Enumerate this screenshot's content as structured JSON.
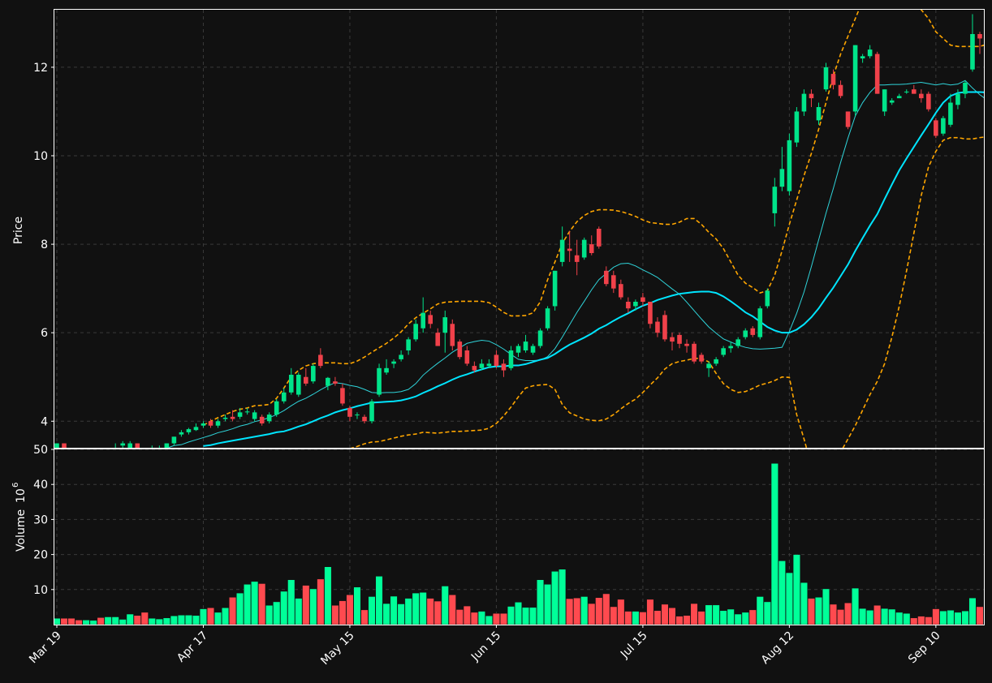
{
  "chart_data": {
    "type": "candlestick",
    "price_panel": {
      "ylabel": "Price",
      "ylim": [
        3.4,
        13.3
      ],
      "yticks": [
        4,
        6,
        8,
        10,
        12
      ],
      "grid": true
    },
    "volume_panel": {
      "ylabel": "Volume",
      "ylabel_exponent": "6",
      "ylim": [
        0,
        50
      ],
      "yticks": [
        10,
        20,
        30,
        40,
        50
      ],
      "grid": true
    },
    "x_ticks": [
      {
        "label": "Mar 19",
        "index": 0
      },
      {
        "label": "Apr 17",
        "index": 20
      },
      {
        "label": "May 15",
        "index": 40
      },
      {
        "label": "Jun 15",
        "index": 60
      },
      {
        "label": "Jul 15",
        "index": 80
      },
      {
        "label": "Aug 12",
        "index": 100
      },
      {
        "label": "Sep 10",
        "index": 120
      }
    ],
    "ohlc": [
      [
        3.4,
        3.5,
        3.3,
        3.5
      ],
      [
        3.5,
        3.5,
        3.3,
        3.4
      ],
      [
        3.35,
        3.4,
        3.3,
        3.3
      ],
      [
        3.3,
        3.35,
        3.25,
        3.28
      ],
      [
        3.28,
        3.35,
        3.25,
        3.3
      ],
      [
        3.3,
        3.4,
        3.25,
        3.3
      ],
      [
        3.28,
        3.3,
        3.2,
        3.25
      ],
      [
        3.25,
        3.3,
        3.2,
        3.26
      ],
      [
        3.3,
        3.5,
        3.3,
        3.4
      ],
      [
        3.45,
        3.55,
        3.4,
        3.5
      ],
      [
        3.4,
        3.55,
        3.35,
        3.5
      ],
      [
        3.5,
        3.5,
        3.3,
        3.35
      ],
      [
        3.3,
        3.4,
        3.2,
        3.25
      ],
      [
        3.35,
        3.45,
        3.3,
        3.4
      ],
      [
        3.35,
        3.45,
        3.3,
        3.4
      ],
      [
        3.4,
        3.5,
        3.35,
        3.5
      ],
      [
        3.5,
        3.65,
        3.45,
        3.65
      ],
      [
        3.7,
        3.8,
        3.65,
        3.75
      ],
      [
        3.75,
        3.85,
        3.7,
        3.82
      ],
      [
        3.8,
        3.95,
        3.78,
        3.87
      ],
      [
        3.9,
        4.0,
        3.85,
        3.95
      ],
      [
        4.0,
        4.05,
        3.85,
        3.9
      ],
      [
        3.9,
        4.05,
        3.85,
        4.0
      ],
      [
        4.05,
        4.15,
        4.0,
        4.08
      ],
      [
        4.1,
        4.25,
        4.0,
        4.05
      ],
      [
        4.1,
        4.3,
        4.05,
        4.2
      ],
      [
        4.2,
        4.3,
        4.15,
        4.22
      ],
      [
        4.05,
        4.25,
        4.0,
        4.2
      ],
      [
        4.1,
        4.15,
        3.9,
        3.95
      ],
      [
        4.0,
        4.2,
        3.95,
        4.15
      ],
      [
        4.15,
        4.5,
        4.1,
        4.45
      ],
      [
        4.45,
        4.75,
        4.4,
        4.65
      ],
      [
        4.65,
        5.2,
        4.6,
        5.05
      ],
      [
        4.6,
        5.1,
        4.55,
        5.05
      ],
      [
        5.0,
        5.2,
        4.8,
        4.85
      ],
      [
        4.9,
        5.3,
        4.85,
        5.25
      ],
      [
        5.5,
        5.65,
        5.2,
        5.25
      ],
      [
        4.8,
        5.0,
        4.7,
        4.98
      ],
      [
        4.9,
        5.0,
        4.8,
        4.85
      ],
      [
        4.75,
        4.85,
        4.35,
        4.4
      ],
      [
        4.3,
        4.35,
        4.0,
        4.1
      ],
      [
        4.15,
        4.2,
        4.05,
        4.15
      ],
      [
        4.1,
        4.15,
        3.95,
        4.0
      ],
      [
        4.0,
        4.5,
        3.95,
        4.45
      ],
      [
        4.6,
        5.3,
        4.55,
        5.2
      ],
      [
        5.1,
        5.4,
        5.05,
        5.2
      ],
      [
        5.3,
        5.4,
        5.2,
        5.35
      ],
      [
        5.4,
        5.6,
        5.35,
        5.5
      ],
      [
        5.6,
        5.9,
        5.5,
        5.85
      ],
      [
        5.85,
        6.3,
        5.8,
        6.2
      ],
      [
        6.1,
        6.8,
        6.0,
        6.45
      ],
      [
        6.4,
        6.5,
        6.1,
        6.2
      ],
      [
        6.0,
        6.1,
        5.7,
        5.7
      ],
      [
        6.0,
        6.5,
        5.55,
        6.35
      ],
      [
        6.2,
        6.3,
        5.6,
        5.7
      ],
      [
        5.8,
        5.85,
        5.4,
        5.45
      ],
      [
        5.6,
        5.7,
        5.25,
        5.3
      ],
      [
        5.25,
        5.35,
        5.1,
        5.15
      ],
      [
        5.2,
        5.4,
        5.15,
        5.3
      ],
      [
        5.25,
        5.4,
        5.2,
        5.3
      ],
      [
        5.5,
        5.6,
        5.2,
        5.25
      ],
      [
        5.3,
        5.4,
        5.0,
        5.15
      ],
      [
        5.2,
        5.7,
        5.15,
        5.6
      ],
      [
        5.55,
        5.75,
        5.45,
        5.7
      ],
      [
        5.6,
        5.95,
        5.55,
        5.8
      ],
      [
        5.55,
        5.75,
        5.5,
        5.7
      ],
      [
        5.7,
        6.1,
        5.65,
        6.05
      ],
      [
        6.1,
        6.6,
        6.05,
        6.55
      ],
      [
        6.6,
        7.4,
        6.5,
        7.4
      ],
      [
        7.6,
        8.4,
        7.5,
        8.1
      ],
      [
        7.9,
        8.3,
        7.6,
        7.85
      ],
      [
        7.75,
        8.1,
        7.3,
        7.6
      ],
      [
        7.7,
        8.15,
        7.65,
        8.1
      ],
      [
        8.0,
        8.2,
        7.75,
        7.8
      ],
      [
        8.35,
        8.4,
        7.9,
        7.95
      ],
      [
        7.4,
        7.5,
        7.05,
        7.1
      ],
      [
        7.3,
        7.4,
        6.9,
        7.0
      ],
      [
        7.1,
        7.2,
        6.75,
        6.8
      ],
      [
        6.7,
        6.8,
        6.45,
        6.55
      ],
      [
        6.6,
        6.75,
        6.5,
        6.7
      ],
      [
        6.8,
        6.9,
        6.6,
        6.7
      ],
      [
        6.7,
        6.7,
        6.1,
        6.2
      ],
      [
        6.25,
        6.35,
        5.9,
        6.0
      ],
      [
        6.4,
        6.5,
        5.8,
        5.85
      ],
      [
        5.9,
        6.0,
        5.6,
        5.8
      ],
      [
        5.95,
        6.0,
        5.65,
        5.75
      ],
      [
        5.75,
        5.85,
        5.55,
        5.7
      ],
      [
        5.75,
        5.8,
        5.3,
        5.35
      ],
      [
        5.5,
        5.55,
        5.3,
        5.35
      ],
      [
        5.2,
        5.35,
        5.0,
        5.3
      ],
      [
        5.3,
        5.45,
        5.25,
        5.4
      ],
      [
        5.5,
        5.7,
        5.45,
        5.65
      ],
      [
        5.65,
        5.8,
        5.55,
        5.7
      ],
      [
        5.7,
        5.9,
        5.65,
        5.85
      ],
      [
        5.9,
        6.1,
        5.85,
        6.05
      ],
      [
        6.1,
        6.15,
        5.9,
        5.95
      ],
      [
        5.9,
        6.6,
        5.85,
        6.55
      ],
      [
        6.6,
        7.0,
        6.55,
        6.95
      ],
      [
        8.7,
        9.5,
        8.4,
        9.3
      ],
      [
        9.3,
        10.2,
        9.2,
        9.7
      ],
      [
        9.2,
        10.5,
        9.1,
        10.35
      ],
      [
        10.3,
        11.1,
        10.2,
        11.0
      ],
      [
        11.0,
        11.5,
        10.9,
        11.4
      ],
      [
        11.4,
        11.5,
        11.1,
        11.3
      ],
      [
        10.8,
        11.2,
        10.7,
        11.1
      ],
      [
        11.5,
        12.1,
        11.45,
        12.0
      ],
      [
        11.85,
        11.95,
        11.5,
        11.6
      ],
      [
        11.6,
        11.7,
        11.3,
        11.35
      ],
      [
        11.0,
        11.0,
        10.6,
        10.65
      ],
      [
        11.0,
        12.5,
        10.9,
        12.5
      ],
      [
        12.2,
        12.3,
        12.1,
        12.25
      ],
      [
        12.25,
        12.5,
        12.2,
        12.4
      ],
      [
        12.3,
        12.35,
        11.4,
        11.4
      ],
      [
        11.0,
        11.5,
        10.9,
        11.5
      ],
      [
        11.2,
        11.3,
        11.15,
        11.25
      ],
      [
        11.3,
        11.4,
        11.3,
        11.35
      ],
      [
        11.45,
        11.5,
        11.4,
        11.45
      ],
      [
        11.5,
        11.6,
        11.4,
        11.4
      ],
      [
        11.4,
        11.5,
        11.2,
        11.3
      ],
      [
        11.4,
        11.45,
        11.0,
        11.05
      ],
      [
        10.8,
        10.85,
        10.4,
        10.45
      ],
      [
        10.5,
        10.9,
        10.45,
        10.85
      ],
      [
        10.7,
        11.4,
        10.65,
        11.2
      ],
      [
        11.15,
        11.5,
        11.05,
        11.4
      ],
      [
        11.4,
        11.7,
        11.3,
        11.65
      ],
      [
        11.95,
        13.2,
        11.9,
        12.75
      ],
      [
        12.75,
        12.8,
        12.3,
        12.65
      ]
    ],
    "volume": [
      1.8,
      1.8,
      1.8,
      1.3,
      1.3,
      1.2,
      2.0,
      2.2,
      2.2,
      1.5,
      3.0,
      2.6,
      3.5,
      1.8,
      1.6,
      1.9,
      2.5,
      2.7,
      2.7,
      2.6,
      4.5,
      4.8,
      3.5,
      4.8,
      7.8,
      9.0,
      11.5,
      12.3,
      11.7,
      5.5,
      6.5,
      9.5,
      12.8,
      7.5,
      11.2,
      10.2,
      13.0,
      16.5,
      5.5,
      6.8,
      8.5,
      10.7,
      4.2,
      8.0,
      13.8,
      6.0,
      8.1,
      5.9,
      7.5,
      9.0,
      9.2,
      7.5,
      6.7,
      11.0,
      8.5,
      4.3,
      5.3,
      3.5,
      3.8,
      2.5,
      3.2,
      3.2,
      5.2,
      6.4,
      4.9,
      4.9,
      12.8,
      11.5,
      15.2,
      15.8,
      7.4,
      7.6,
      8.0,
      6.0,
      7.7,
      8.8,
      5.1,
      7.2,
      3.8,
      3.8,
      3.6,
      7.2,
      4.0,
      5.8,
      4.8,
      2.4,
      2.6,
      6.0,
      3.8,
      5.6,
      5.6,
      4.0,
      4.4,
      3.0,
      3.5,
      4.2,
      8.0,
      6.5,
      46.0,
      18.2,
      14.8,
      20.0,
      12.0,
      7.5,
      7.8,
      10.2,
      5.8,
      4.3,
      6.2,
      10.4,
      4.6,
      4.1,
      5.5,
      4.6,
      4.4,
      3.5,
      3.2,
      1.9,
      2.4,
      2.2,
      4.5,
      3.9,
      4.1,
      3.5,
      3.9,
      7.6,
      5.1
    ],
    "sma_short": [
      null,
      null,
      null,
      null,
      null,
      null,
      null,
      null,
      null,
      null,
      3.29,
      3.29,
      3.31,
      3.34,
      3.35,
      3.39,
      3.45,
      3.47,
      3.53,
      3.58,
      3.63,
      3.68,
      3.74,
      3.78,
      3.83,
      3.89,
      3.93,
      3.99,
      4.03,
      4.08,
      4.15,
      4.24,
      4.35,
      4.45,
      4.52,
      4.61,
      4.71,
      4.8,
      4.87,
      4.85,
      4.81,
      4.78,
      4.72,
      4.65,
      4.64,
      4.65,
      4.65,
      4.67,
      4.72,
      4.85,
      5.04,
      5.18,
      5.31,
      5.43,
      5.56,
      5.66,
      5.76,
      5.8,
      5.83,
      5.81,
      5.73,
      5.63,
      5.51,
      5.4,
      5.37,
      5.37,
      5.38,
      5.46,
      5.64,
      5.9,
      6.18,
      6.46,
      6.71,
      6.97,
      7.2,
      7.34,
      7.48,
      7.56,
      7.57,
      7.51,
      7.42,
      7.34,
      7.25,
      7.12,
      6.99,
      6.87,
      6.69,
      6.5,
      6.31,
      6.13,
      5.99,
      5.86,
      5.79,
      5.72,
      5.67,
      5.64,
      5.63,
      5.64,
      5.65,
      5.67,
      6.03,
      6.44,
      6.92,
      7.49,
      8.1,
      8.7,
      9.26,
      9.85,
      10.4,
      10.9,
      11.2,
      11.43,
      11.6,
      11.6,
      11.61,
      11.61,
      11.62,
      11.64,
      11.66,
      11.63,
      11.6,
      11.63,
      11.6,
      11.62,
      11.7,
      11.53,
      11.38,
      11.26,
      11.22,
      11.25
    ],
    "sma_long": [
      null,
      null,
      null,
      null,
      null,
      null,
      null,
      null,
      null,
      null,
      null,
      null,
      null,
      null,
      null,
      null,
      null,
      null,
      null,
      null,
      3.44,
      3.46,
      3.5,
      3.53,
      3.56,
      3.59,
      3.62,
      3.65,
      3.68,
      3.71,
      3.75,
      3.77,
      3.82,
      3.88,
      3.93,
      4.0,
      4.07,
      4.13,
      4.2,
      4.25,
      4.29,
      4.34,
      4.38,
      4.42,
      4.43,
      4.44,
      4.45,
      4.47,
      4.51,
      4.56,
      4.64,
      4.71,
      4.79,
      4.86,
      4.94,
      5.01,
      5.06,
      5.12,
      5.17,
      5.22,
      5.24,
      5.24,
      5.26,
      5.26,
      5.29,
      5.34,
      5.39,
      5.43,
      5.52,
      5.63,
      5.73,
      5.81,
      5.89,
      5.98,
      6.09,
      6.17,
      6.27,
      6.36,
      6.44,
      6.53,
      6.61,
      6.67,
      6.74,
      6.79,
      6.84,
      6.88,
      6.9,
      6.92,
      6.93,
      6.93,
      6.9,
      6.82,
      6.71,
      6.59,
      6.46,
      6.37,
      6.25,
      6.13,
      6.05,
      6.0,
      6.0,
      6.07,
      6.19,
      6.35,
      6.55,
      6.79,
      7.02,
      7.28,
      7.54,
      7.85,
      8.14,
      8.42,
      8.68,
      9.02,
      9.35,
      9.67,
      9.94,
      10.2,
      10.46,
      10.71,
      10.97,
      11.2,
      11.35,
      11.42,
      11.44,
      11.44,
      11.44,
      11.43,
      11.44,
      11.47
    ],
    "band_upper": [
      null,
      null,
      null,
      null,
      null,
      null,
      null,
      null,
      null,
      null,
      null,
      null,
      null,
      null,
      null,
      null,
      null,
      null,
      null,
      null,
      3.91,
      4.0,
      4.08,
      4.15,
      4.22,
      4.27,
      4.3,
      4.35,
      4.36,
      4.38,
      4.52,
      4.75,
      5.0,
      5.15,
      5.25,
      5.3,
      5.32,
      5.32,
      5.32,
      5.3,
      5.3,
      5.36,
      5.45,
      5.56,
      5.66,
      5.76,
      5.88,
      6.02,
      6.2,
      6.34,
      6.44,
      6.54,
      6.65,
      6.69,
      6.7,
      6.71,
      6.71,
      6.71,
      6.71,
      6.68,
      6.58,
      6.46,
      6.38,
      6.38,
      6.39,
      6.45,
      6.7,
      7.2,
      7.6,
      8.02,
      8.29,
      8.51,
      8.65,
      8.74,
      8.78,
      8.78,
      8.77,
      8.74,
      8.69,
      8.63,
      8.55,
      8.49,
      8.47,
      8.45,
      8.45,
      8.5,
      8.58,
      8.58,
      8.45,
      8.27,
      8.12,
      7.9,
      7.6,
      7.3,
      7.12,
      7.02,
      6.9,
      6.95,
      7.3,
      7.85,
      8.45,
      9.0,
      9.55,
      10.05,
      10.6,
      11.2,
      11.8,
      12.3,
      12.7,
      13.1,
      13.5,
      13.9,
      14.0,
      13.95,
      13.85,
      13.7,
      13.65,
      13.5,
      13.3,
      13.1,
      12.8,
      12.65,
      12.5,
      12.47,
      12.47,
      12.47,
      12.47,
      12.52,
      12.7,
      12.8
    ],
    "band_lower": [
      null,
      null,
      null,
      null,
      null,
      null,
      null,
      null,
      null,
      null,
      null,
      null,
      null,
      null,
      null,
      null,
      null,
      null,
      null,
      null,
      2.97,
      2.92,
      2.92,
      2.91,
      2.9,
      2.91,
      2.94,
      2.95,
      3.0,
      3.04,
      3.1,
      3.13,
      3.15,
      3.17,
      3.2,
      3.24,
      3.28,
      3.29,
      3.3,
      3.32,
      3.38,
      3.43,
      3.49,
      3.53,
      3.54,
      3.58,
      3.62,
      3.66,
      3.69,
      3.71,
      3.75,
      3.74,
      3.73,
      3.75,
      3.77,
      3.77,
      3.78,
      3.79,
      3.8,
      3.84,
      3.95,
      4.12,
      4.32,
      4.55,
      4.75,
      4.8,
      4.82,
      4.83,
      4.72,
      4.38,
      4.19,
      4.12,
      4.05,
      4.02,
      4.01,
      4.05,
      4.15,
      4.28,
      4.4,
      4.5,
      4.65,
      4.82,
      4.98,
      5.18,
      5.3,
      5.35,
      5.38,
      5.42,
      5.42,
      5.34,
      5.08,
      4.85,
      4.72,
      4.65,
      4.67,
      4.74,
      4.82,
      4.86,
      4.92,
      5.0,
      4.99,
      4.15,
      3.6,
      3.0,
      2.7,
      2.7,
      2.7,
      3.3,
      3.6,
      3.9,
      4.25,
      4.6,
      4.9,
      5.3,
      5.9,
      6.6,
      7.4,
      8.25,
      9.1,
      9.75,
      10.1,
      10.35,
      10.41,
      10.41,
      10.38,
      10.38,
      10.41,
      10.43,
      10.41,
      10.32
    ],
    "colors": {
      "background": "#111111",
      "up": "#00e48a",
      "down": "#f0414a",
      "up_volume": "#00ff99",
      "down_volume": "#ff4a4f",
      "ma_short": "#2fd3d9",
      "ma_long": "#00e5ff",
      "bands": "#ffa600",
      "grid": "#3a3a3a",
      "text": "#ffffff"
    }
  }
}
